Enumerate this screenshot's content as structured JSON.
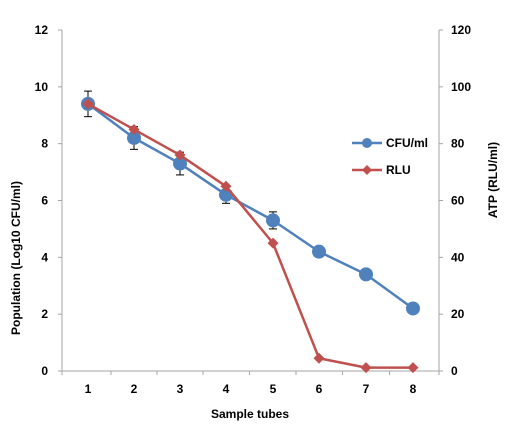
{
  "chart_data": {
    "type": "line",
    "title": "",
    "xlabel": "Sample tubes",
    "ylabel_left": "Population (Log10 CFU/ml)",
    "ylabel_right": "ATP (RLU/ml)",
    "x": [
      1,
      2,
      3,
      4,
      5,
      6,
      7,
      8
    ],
    "x_tick_labels": [
      "1",
      "2",
      "3",
      "4",
      "5",
      "6",
      "7",
      "8"
    ],
    "ylim_left": [
      0,
      12
    ],
    "ylim_right": [
      0,
      120
    ],
    "y_left_ticks": [
      "0",
      "2",
      "4",
      "6",
      "8",
      "10",
      "12"
    ],
    "y_right_ticks": [
      "0",
      "20",
      "40",
      "60",
      "80",
      "100",
      "120"
    ],
    "grid": false,
    "legend_position": "right",
    "series": [
      {
        "name": "CFU/ml",
        "axis": "left",
        "color": "#4F81BD",
        "marker": "circle",
        "values": [
          9.4,
          8.2,
          7.3,
          6.2,
          5.3,
          4.2,
          3.4,
          2.2
        ],
        "error": [
          0.45,
          0.4,
          0.4,
          0.3,
          0.3,
          0,
          0,
          0
        ]
      },
      {
        "name": "RLU",
        "axis": "right",
        "color": "#C0504D",
        "marker": "diamond",
        "values": [
          94,
          85,
          76,
          65,
          45,
          4.5,
          1.2,
          1.2
        ],
        "error": [
          0,
          0,
          0,
          0,
          0,
          0,
          0,
          0
        ]
      }
    ]
  }
}
